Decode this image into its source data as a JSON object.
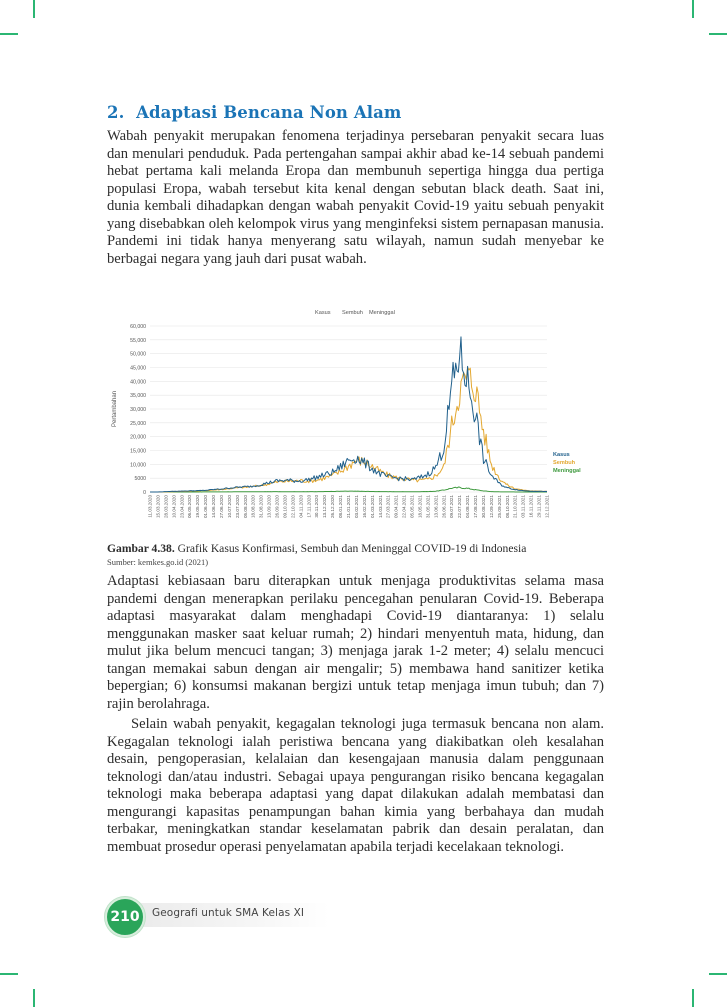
{
  "section": {
    "number": "2.",
    "title": "Adaptasi Bencana Non Alam"
  },
  "paragraphs": {
    "p1": "Wabah penyakit merupakan fenomena terjadinya persebaran penyakit secara luas dan menulari penduduk. Pada pertengahan sampai akhir abad ke-14 sebuah pandemi hebat pertama kali melanda Eropa dan membunuh sepertiga hingga dua pertiga populasi Eropa, wabah tersebut kita kenal dengan sebutan black death. Saat ini, dunia kembali dihadapkan dengan wabah penyakit Covid-19 yaitu sebuah penyakit yang disebabkan oleh kelompok virus yang menginfeksi sistem pernapasan manusia. Pandemi ini tidak hanya menyerang satu wilayah, namun sudah menyebar ke berbagai negara yang jauh dari pusat wabah.",
    "p2": "Adaptasi kebiasaan baru diterapkan untuk menjaga produktivitas selama masa pandemi dengan menerapkan perilaku pencegahan penularan Covid-19. Beberapa adaptasi masyarakat dalam menghadapi Covid-19 diantaranya: 1) selalu menggunakan masker saat keluar rumah; 2) hindari menyentuh mata, hidung, dan mulut jika belum mencuci tangan; 3) menjaga jarak 1-2 meter; 4) selalu mencuci tangan memakai sabun dengan air mengalir; 5) membawa hand sanitizer ketika bepergian; 6) konsumsi makanan bergizi untuk tetap menjaga imun tubuh; dan 7) rajin berolahraga.",
    "p3": "Selain wabah penyakit, kegagalan teknologi juga termasuk bencana non alam. Kegagalan teknologi ialah peristiwa bencana yang diakibatkan oleh kesalahan desain, pengoperasian, kelalaian dan kesengajaan manusia dalam penggunaan teknologi dan/atau industri. Sebagai upaya pengurangan risiko bencana kegagalan teknologi maka beberapa adaptasi yang dapat dilakukan adalah membatasi dan mengurangi kapasitas penampungan bahan kimia yang berbahaya dan mudah terbakar, meningkatkan standar keselamatan pabrik dan desain peralatan, dan membuat prosedur operasi penyelamatan apabila terjadi kecelakaan teknologi."
  },
  "figure": {
    "label": "Gambar 4.38.",
    "caption": "Grafik Kasus Konfirmasi, Sembuh dan Meninggal COVID-19 di Indonesia",
    "source": "Sumber: kemkes.go.id (2021)"
  },
  "chart_data": {
    "type": "line",
    "ylabel": "Pertambahan",
    "ylim": [
      0,
      60000
    ],
    "yticks": [
      0,
      5000,
      10000,
      15000,
      20000,
      25000,
      30000,
      35000,
      40000,
      45000,
      50000,
      55000,
      60000
    ],
    "ytick_labels": [
      "0",
      "5000",
      "10,000",
      "15,000",
      "20,000",
      "25,000",
      "30,000",
      "35,000",
      "40,000",
      "45,000",
      "50,000",
      "55,000",
      "60,000"
    ],
    "legend_top": [
      "Kasus",
      "Sembuh",
      "Meninggal"
    ],
    "legend_right": [
      "Kasus",
      "Sembuh",
      "Meninggal"
    ],
    "legend_placement": "top-center",
    "x_tick_labels": [
      "11.03.2020",
      "15.03.2020",
      "28.03.2020",
      "10.04.2020",
      "23.04.2020",
      "06.05.2020",
      "19.05.2020",
      "01.06.2020",
      "14.06.2020",
      "27.06.2020",
      "10.07.2020",
      "23.07.2020",
      "05.08.2020",
      "18.08.2020",
      "31.08.2020",
      "13.09.2020",
      "26.09.2020",
      "09.10.2020",
      "22.10.2020",
      "04.11.2020",
      "17.11.2020",
      "30.11.2020",
      "13.12.2020",
      "26.12.2020",
      "08.01.2021",
      "21.01.2021",
      "03.02.2021",
      "16.02.2021",
      "01.03.2021",
      "14.03.2021",
      "27.03.2021",
      "09.04.2021",
      "22.04.2021",
      "05.05.2021",
      "18.05.2021",
      "31.05.2021",
      "13.06.2021",
      "26.06.2021",
      "09.07.2021",
      "22.07.2021",
      "04.08.2021",
      "17.08.2021",
      "30.08.2021",
      "12.09.2021",
      "25.09.2021",
      "08.10.2021",
      "21.10.2021",
      "03.11.2021",
      "16.11.2021",
      "29.11.2021",
      "12.12.2021"
    ],
    "x_index": [
      0,
      1,
      2,
      3,
      4,
      5,
      6,
      7,
      8,
      9,
      10,
      11,
      12,
      13,
      14,
      15,
      16,
      17,
      18,
      19,
      20,
      21,
      22,
      23,
      24,
      25,
      26,
      27,
      28,
      29,
      30,
      31,
      32,
      33,
      34,
      35,
      36,
      37,
      38,
      39,
      40,
      41,
      42,
      43,
      44,
      45,
      46,
      47,
      48,
      49,
      50
    ],
    "series": [
      {
        "name": "Kasus",
        "color": "#1f5f8b",
        "values": [
          0,
          10,
          120,
          250,
          330,
          420,
          480,
          600,
          900,
          1100,
          1450,
          1700,
          1900,
          2100,
          2700,
          3400,
          4000,
          4200,
          4100,
          4000,
          4500,
          5300,
          6200,
          7100,
          9000,
          11500,
          12500,
          10500,
          8500,
          6500,
          5400,
          5000,
          4800,
          4400,
          5200,
          6500,
          9000,
          16000,
          38000,
          50000,
          40000,
          28000,
          12000,
          6000,
          3000,
          1500,
          900,
          500,
          300,
          250,
          200
        ]
      },
      {
        "name": "Sembuh",
        "color": "#e3a72f",
        "values": [
          0,
          0,
          30,
          120,
          200,
          280,
          380,
          520,
          720,
          900,
          1200,
          1500,
          1700,
          2000,
          2400,
          3000,
          3600,
          3900,
          4000,
          4100,
          4000,
          4300,
          5100,
          6000,
          7500,
          9500,
          11500,
          11000,
          9300,
          7300,
          6000,
          5200,
          4800,
          4300,
          4200,
          4500,
          6000,
          9000,
          24000,
          37000,
          42000,
          38000,
          22000,
          10000,
          5000,
          2500,
          1200,
          700,
          400,
          300,
          250
        ]
      },
      {
        "name": "Meninggal",
        "color": "#3f9a3f",
        "values": [
          0,
          0,
          10,
          25,
          20,
          15,
          20,
          30,
          40,
          55,
          70,
          75,
          80,
          85,
          100,
          110,
          120,
          110,
          100,
          95,
          110,
          130,
          150,
          200,
          260,
          300,
          280,
          220,
          180,
          150,
          120,
          110,
          100,
          100,
          120,
          160,
          300,
          700,
          1400,
          1600,
          1300,
          800,
          400,
          150,
          70,
          40,
          20,
          15,
          10,
          8,
          6
        ]
      }
    ]
  },
  "footer": {
    "page_number": "210",
    "book_title": "Geografi untuk SMA Kelas XI"
  }
}
